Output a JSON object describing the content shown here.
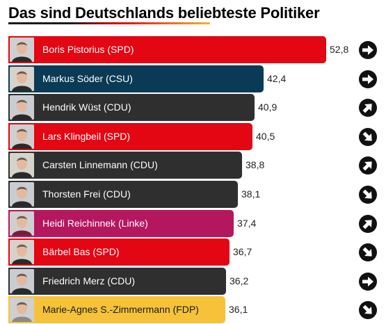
{
  "title": "Das sind Deutschlands beliebteste Politiker",
  "colors": {
    "SPD": "#e30613",
    "CSU": "#0a3a55",
    "CDU": "#2f2f2f",
    "Linke": "#b5175e",
    "FDP": "#f5c23a"
  },
  "chart_data": {
    "type": "bar",
    "orientation": "horizontal",
    "title": "Das sind Deutschlands beliebteste Politiker",
    "xlim": [
      0,
      52.8
    ],
    "categories": [
      "Boris Pistorius (SPD)",
      "Markus Söder (CSU)",
      "Hendrik Wüst (CDU)",
      "Lars Klingbeil (SPD)",
      "Carsten Linnemann (CDU)",
      "Thorsten Frei (CDU)",
      "Heidi Reichinnek (Linke)",
      "Bärbel Bas (SPD)",
      "Friedrich Merz (CDU)",
      "Marie-Agnes S.-Zimmermann (FDP)"
    ],
    "values": [
      52.8,
      42.4,
      40.9,
      40.5,
      38.8,
      38.1,
      37.4,
      36.7,
      36.2,
      36.1
    ],
    "value_labels": [
      "52,8",
      "42,4",
      "40,9",
      "40,5",
      "38,8",
      "38,1",
      "37,4",
      "36,7",
      "36,2",
      "36,1"
    ],
    "party": [
      "SPD",
      "CSU",
      "CDU",
      "SPD",
      "CDU",
      "CDU",
      "Linke",
      "SPD",
      "CDU",
      "FDP"
    ],
    "trend": [
      "right",
      "right",
      "up-right",
      "down-right",
      "up-right",
      "down-right",
      "up-right",
      "down-right",
      "right",
      "down-right"
    ]
  }
}
